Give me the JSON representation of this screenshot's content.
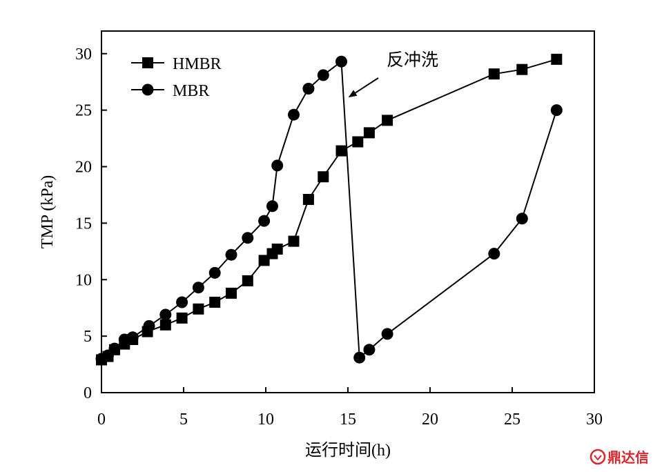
{
  "chart_data": {
    "type": "line",
    "title": "",
    "xlabel": "运行时间(h)",
    "ylabel": "TMP (kPa)",
    "xlim": [
      0,
      30
    ],
    "ylim": [
      0,
      32
    ],
    "xticks": [
      0,
      5,
      10,
      15,
      20,
      25,
      30
    ],
    "yticks": [
      0,
      5,
      10,
      15,
      20,
      25,
      30
    ],
    "grid": false,
    "legend_position": "top-left",
    "series": [
      {
        "name": "HMBR",
        "marker": "square",
        "color": "#000000",
        "points": [
          [
            0,
            2.9
          ],
          [
            0.4,
            3.2
          ],
          [
            0.8,
            3.8
          ],
          [
            1.4,
            4.3
          ],
          [
            1.9,
            4.7
          ],
          [
            2.8,
            5.4
          ],
          [
            3.9,
            6.0
          ],
          [
            4.9,
            6.6
          ],
          [
            5.9,
            7.4
          ],
          [
            6.9,
            8.0
          ],
          [
            7.9,
            8.8
          ],
          [
            8.9,
            9.9
          ],
          [
            9.9,
            11.7
          ],
          [
            10.4,
            12.3
          ],
          [
            10.7,
            12.7
          ],
          [
            11.7,
            13.4
          ],
          [
            12.6,
            17.1
          ],
          [
            13.5,
            19.1
          ],
          [
            14.6,
            21.4
          ],
          [
            15.6,
            22.2
          ],
          [
            16.3,
            23.0
          ],
          [
            17.4,
            24.1
          ],
          [
            23.9,
            28.2
          ],
          [
            25.6,
            28.6
          ],
          [
            27.7,
            29.5
          ]
        ]
      },
      {
        "name": "MBR",
        "marker": "circle",
        "color": "#000000",
        "points": [
          [
            0,
            3.0
          ],
          [
            0.4,
            3.3
          ],
          [
            0.8,
            3.9
          ],
          [
            1.4,
            4.7
          ],
          [
            1.9,
            4.9
          ],
          [
            2.9,
            5.9
          ],
          [
            3.9,
            6.9
          ],
          [
            4.9,
            8.0
          ],
          [
            5.9,
            9.3
          ],
          [
            6.9,
            10.6
          ],
          [
            7.9,
            12.2
          ],
          [
            8.9,
            13.7
          ],
          [
            9.9,
            15.2
          ],
          [
            10.4,
            16.5
          ],
          [
            10.7,
            20.1
          ],
          [
            11.7,
            24.6
          ],
          [
            12.6,
            26.9
          ],
          [
            13.5,
            28.1
          ],
          [
            14.6,
            29.3
          ],
          [
            15.7,
            3.1
          ],
          [
            16.3,
            3.8
          ],
          [
            17.4,
            5.2
          ],
          [
            23.9,
            12.3
          ],
          [
            25.6,
            15.4
          ],
          [
            27.7,
            25.0
          ]
        ]
      }
    ],
    "annotations": [
      {
        "text": "反冲洗",
        "arrow_to": [
          15.1,
          26.2
        ]
      }
    ]
  },
  "watermark": {
    "text": "鼎达信",
    "color": "#d9252b"
  }
}
